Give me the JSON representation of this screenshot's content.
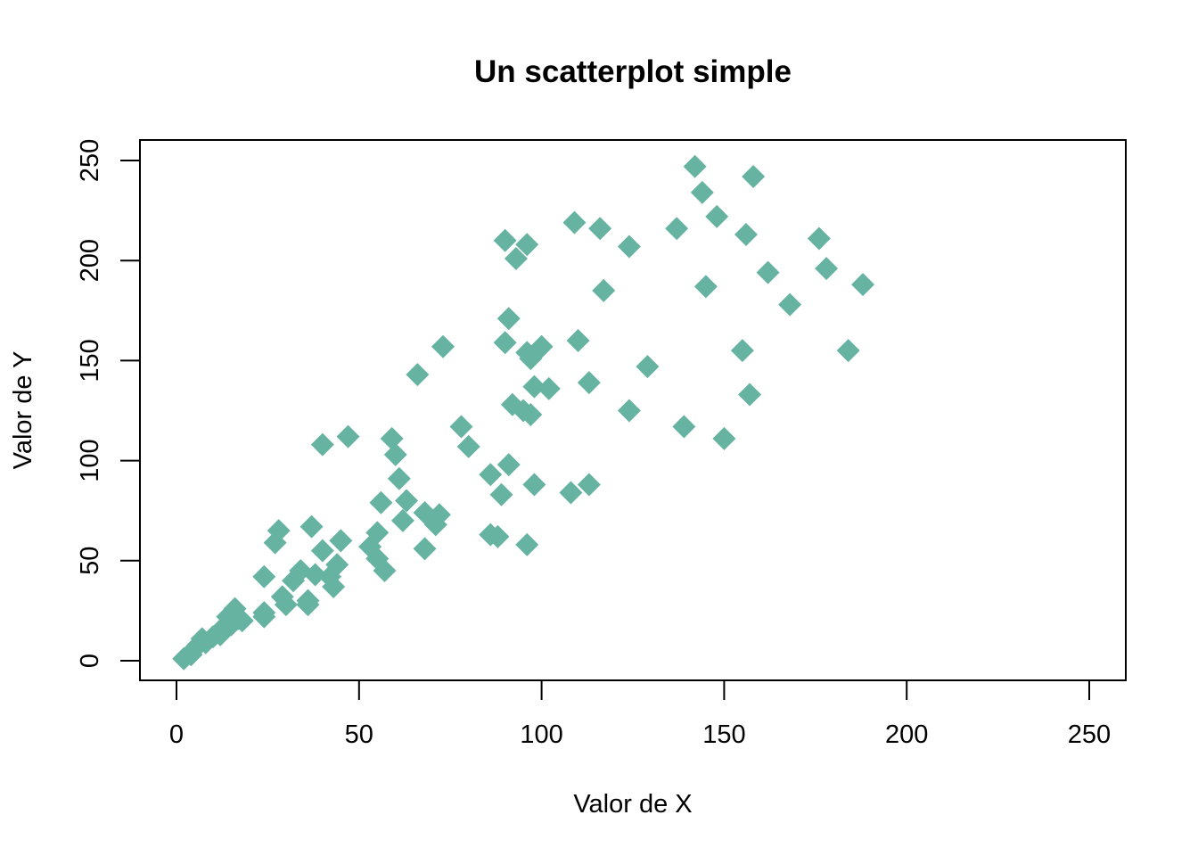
{
  "chart_data": {
    "type": "scatter",
    "title": "Un scatterplot simple",
    "xlabel": "Valor de X",
    "ylabel": "Valor de Y",
    "xlim": [
      0,
      250
    ],
    "ylim": [
      0,
      250
    ],
    "xticks": [
      0,
      50,
      100,
      150,
      200,
      250
    ],
    "yticks": [
      0,
      50,
      100,
      150,
      200,
      250
    ],
    "grid": false,
    "marker": "diamond",
    "point_color": "#66B3A2",
    "points": [
      [
        2,
        1
      ],
      [
        4,
        3
      ],
      [
        5,
        6
      ],
      [
        6,
        8
      ],
      [
        7,
        11
      ],
      [
        8,
        9
      ],
      [
        10,
        12
      ],
      [
        12,
        13
      ],
      [
        13,
        17
      ],
      [
        14,
        22
      ],
      [
        15,
        18
      ],
      [
        16,
        26
      ],
      [
        17,
        21
      ],
      [
        18,
        20
      ],
      [
        24,
        24
      ],
      [
        24,
        22
      ],
      [
        24,
        42
      ],
      [
        28,
        65
      ],
      [
        27,
        59
      ],
      [
        29,
        32
      ],
      [
        30,
        28
      ],
      [
        32,
        40
      ],
      [
        34,
        45
      ],
      [
        36,
        30
      ],
      [
        36,
        28
      ],
      [
        37,
        67
      ],
      [
        38,
        43
      ],
      [
        40,
        55
      ],
      [
        40,
        108
      ],
      [
        42,
        42
      ],
      [
        43,
        37
      ],
      [
        44,
        48
      ],
      [
        45,
        60
      ],
      [
        47,
        112
      ],
      [
        53,
        57
      ],
      [
        55,
        64
      ],
      [
        55,
        51
      ],
      [
        57,
        45
      ],
      [
        56,
        79
      ],
      [
        59,
        111
      ],
      [
        60,
        103
      ],
      [
        61,
        91
      ],
      [
        62,
        70
      ],
      [
        63,
        80
      ],
      [
        66,
        143
      ],
      [
        68,
        74
      ],
      [
        68,
        56
      ],
      [
        71,
        68
      ],
      [
        72,
        73
      ],
      [
        73,
        157
      ],
      [
        78,
        117
      ],
      [
        80,
        107
      ],
      [
        86,
        63
      ],
      [
        86,
        93
      ],
      [
        88,
        62
      ],
      [
        89,
        83
      ],
      [
        90,
        210
      ],
      [
        90,
        159
      ],
      [
        91,
        171
      ],
      [
        91,
        98
      ],
      [
        92,
        128
      ],
      [
        93,
        201
      ],
      [
        95,
        125
      ],
      [
        96,
        208
      ],
      [
        96,
        154
      ],
      [
        96,
        58
      ],
      [
        97,
        123
      ],
      [
        97,
        151
      ],
      [
        98,
        88
      ],
      [
        98,
        137
      ],
      [
        100,
        157
      ],
      [
        102,
        136
      ],
      [
        108,
        84
      ],
      [
        109,
        219
      ],
      [
        110,
        160
      ],
      [
        113,
        88
      ],
      [
        113,
        139
      ],
      [
        116,
        216
      ],
      [
        117,
        185
      ],
      [
        124,
        207
      ],
      [
        124,
        125
      ],
      [
        129,
        147
      ],
      [
        137,
        216
      ],
      [
        139,
        117
      ],
      [
        142,
        247
      ],
      [
        144,
        234
      ],
      [
        145,
        187
      ],
      [
        148,
        222
      ],
      [
        150,
        111
      ],
      [
        155,
        155
      ],
      [
        156,
        213
      ],
      [
        157,
        133
      ],
      [
        158,
        242
      ],
      [
        162,
        194
      ],
      [
        168,
        178
      ],
      [
        176,
        211
      ],
      [
        178,
        196
      ],
      [
        184,
        155
      ],
      [
        188,
        188
      ]
    ]
  }
}
